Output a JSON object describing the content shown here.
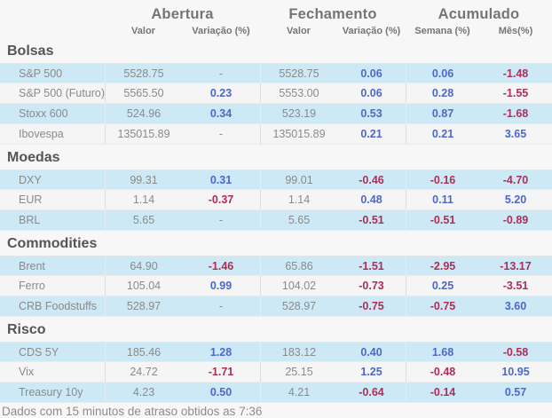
{
  "header": {
    "groups": [
      "Abertura",
      "Fechamento",
      "Acumulado"
    ],
    "subcols": [
      "Valor",
      "Variação (%)",
      "Valor",
      "Variação (%)",
      "Semana (%)",
      "Mês(%)"
    ]
  },
  "sections": [
    {
      "title": "Bolsas",
      "rows": [
        {
          "label": "S&P 500",
          "highlight": true,
          "cells": [
            {
              "v": "5528.75",
              "t": "plain"
            },
            {
              "v": "-",
              "t": "dash"
            },
            {
              "v": "5528.75",
              "t": "plain"
            },
            {
              "v": "0.06",
              "t": "pos"
            },
            {
              "v": "0.06",
              "t": "pos"
            },
            {
              "v": "-1.48",
              "t": "neg"
            }
          ]
        },
        {
          "label": "S&P 500 (Futuro)",
          "highlight": false,
          "cells": [
            {
              "v": "5565.50",
              "t": "plain"
            },
            {
              "v": "0.23",
              "t": "pos"
            },
            {
              "v": "5553.00",
              "t": "plain"
            },
            {
              "v": "0.06",
              "t": "pos"
            },
            {
              "v": "0.28",
              "t": "pos"
            },
            {
              "v": "-1.55",
              "t": "neg"
            }
          ]
        },
        {
          "label": "Stoxx 600",
          "highlight": true,
          "cells": [
            {
              "v": "524.96",
              "t": "plain"
            },
            {
              "v": "0.34",
              "t": "pos"
            },
            {
              "v": "523.19",
              "t": "plain"
            },
            {
              "v": "0.53",
              "t": "pos"
            },
            {
              "v": "0.87",
              "t": "pos"
            },
            {
              "v": "-1.68",
              "t": "neg"
            }
          ]
        },
        {
          "label": "Ibovespa",
          "highlight": false,
          "cells": [
            {
              "v": "135015.89",
              "t": "plain"
            },
            {
              "v": "-",
              "t": "dash"
            },
            {
              "v": "135015.89",
              "t": "plain"
            },
            {
              "v": "0.21",
              "t": "pos"
            },
            {
              "v": "0.21",
              "t": "pos"
            },
            {
              "v": "3.65",
              "t": "pos"
            }
          ]
        }
      ]
    },
    {
      "title": "Moedas",
      "rows": [
        {
          "label": "DXY",
          "highlight": true,
          "cells": [
            {
              "v": "99.31",
              "t": "plain"
            },
            {
              "v": "0.31",
              "t": "pos"
            },
            {
              "v": "99.01",
              "t": "plain"
            },
            {
              "v": "-0.46",
              "t": "neg"
            },
            {
              "v": "-0.16",
              "t": "neg"
            },
            {
              "v": "-4.70",
              "t": "neg"
            }
          ]
        },
        {
          "label": "EUR",
          "highlight": false,
          "cells": [
            {
              "v": "1.14",
              "t": "plain"
            },
            {
              "v": "-0.37",
              "t": "neg"
            },
            {
              "v": "1.14",
              "t": "plain"
            },
            {
              "v": "0.48",
              "t": "pos"
            },
            {
              "v": "0.11",
              "t": "pos"
            },
            {
              "v": "5.20",
              "t": "pos"
            }
          ]
        },
        {
          "label": "BRL",
          "highlight": true,
          "cells": [
            {
              "v": "5.65",
              "t": "plain"
            },
            {
              "v": "-",
              "t": "dash"
            },
            {
              "v": "5.65",
              "t": "plain"
            },
            {
              "v": "-0.51",
              "t": "neg"
            },
            {
              "v": "-0.51",
              "t": "neg"
            },
            {
              "v": "-0.89",
              "t": "neg"
            }
          ]
        }
      ]
    },
    {
      "title": "Commodities",
      "rows": [
        {
          "label": "Brent",
          "highlight": true,
          "cells": [
            {
              "v": "64.90",
              "t": "plain"
            },
            {
              "v": "-1.46",
              "t": "neg"
            },
            {
              "v": "65.86",
              "t": "plain"
            },
            {
              "v": "-1.51",
              "t": "neg"
            },
            {
              "v": "-2.95",
              "t": "neg"
            },
            {
              "v": "-13.17",
              "t": "neg"
            }
          ]
        },
        {
          "label": "Ferro",
          "highlight": false,
          "cells": [
            {
              "v": "105.04",
              "t": "plain"
            },
            {
              "v": "0.99",
              "t": "pos"
            },
            {
              "v": "104.02",
              "t": "plain"
            },
            {
              "v": "-0.73",
              "t": "neg"
            },
            {
              "v": "0.25",
              "t": "pos"
            },
            {
              "v": "-3.51",
              "t": "neg"
            }
          ]
        },
        {
          "label": "CRB Foodstuffs",
          "highlight": true,
          "cells": [
            {
              "v": "528.97",
              "t": "plain"
            },
            {
              "v": "-",
              "t": "dash"
            },
            {
              "v": "528.97",
              "t": "plain"
            },
            {
              "v": "-0.75",
              "t": "neg"
            },
            {
              "v": "-0.75",
              "t": "neg"
            },
            {
              "v": "3.60",
              "t": "pos"
            }
          ]
        }
      ]
    },
    {
      "title": "Risco",
      "rows": [
        {
          "label": "CDS 5Y",
          "highlight": true,
          "cells": [
            {
              "v": "185.46",
              "t": "plain"
            },
            {
              "v": "1.28",
              "t": "pos"
            },
            {
              "v": "183.12",
              "t": "plain"
            },
            {
              "v": "0.40",
              "t": "pos"
            },
            {
              "v": "1.68",
              "t": "pos"
            },
            {
              "v": "-0.58",
              "t": "neg"
            }
          ]
        },
        {
          "label": "Vix",
          "highlight": false,
          "cells": [
            {
              "v": "24.72",
              "t": "plain"
            },
            {
              "v": "-1.71",
              "t": "neg"
            },
            {
              "v": "25.15",
              "t": "plain"
            },
            {
              "v": "1.25",
              "t": "pos"
            },
            {
              "v": "-0.48",
              "t": "neg"
            },
            {
              "v": "10.95",
              "t": "pos"
            }
          ]
        },
        {
          "label": "Treasury 10y",
          "highlight": true,
          "cells": [
            {
              "v": "4.23",
              "t": "plain"
            },
            {
              "v": "0.50",
              "t": "pos"
            },
            {
              "v": "4.21",
              "t": "plain"
            },
            {
              "v": "-0.64",
              "t": "neg"
            },
            {
              "v": "-0.14",
              "t": "neg"
            },
            {
              "v": "0.57",
              "t": "pos"
            }
          ]
        }
      ]
    }
  ],
  "footer": "Dados com 15 minutos de atraso obtidos as 7:36",
  "colors": {
    "positive": "#4d68cb",
    "negative": "#ad2e58",
    "row_highlight": "#cde9f5",
    "background": "#f7f7f7"
  }
}
